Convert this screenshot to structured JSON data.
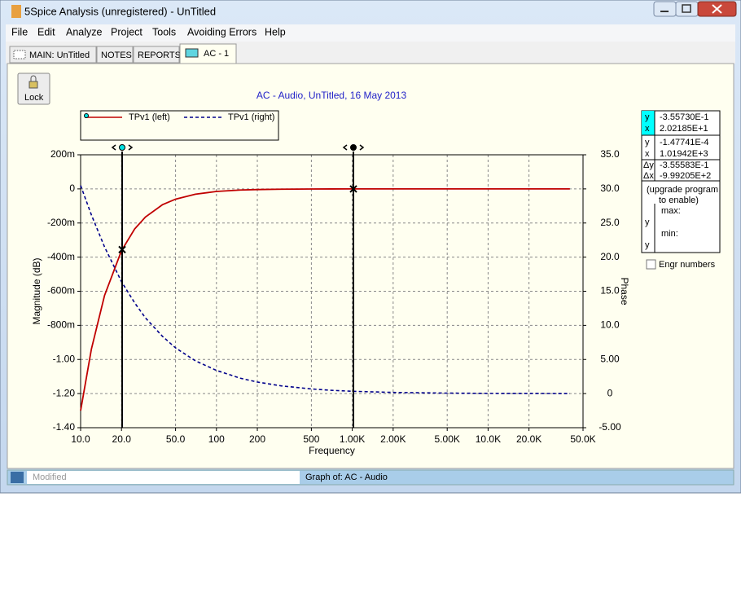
{
  "window": {
    "title": "5Spice Analysis (unregistered) - UnTitled"
  },
  "menu": [
    "File",
    "Edit",
    "Analyze",
    "Project",
    "Tools",
    "Avoiding Errors",
    "Help"
  ],
  "tabs": [
    "MAIN:  UnTitled",
    "NOTES",
    "REPORTS",
    "AC - 1"
  ],
  "lock": "Lock",
  "chart_data": {
    "type": "line",
    "title": "AC - Audio,    UnTitled,   16 May 2013",
    "xlabel": "Frequency",
    "ylabel": "Magnitude (dB)",
    "y2label": "Phase",
    "xscale": "log",
    "grid": true,
    "xlim": [
      10,
      50000
    ],
    "xticks": [
      {
        "value": 10,
        "label": "10.0"
      },
      {
        "value": 20,
        "label": "20.0"
      },
      {
        "value": 50,
        "label": "50.0"
      },
      100,
      200,
      500,
      {
        "value": 1000,
        "label": "1.00K"
      },
      {
        "value": 2000,
        "label": "2.00K"
      },
      {
        "value": 5000,
        "label": "5.00K"
      },
      {
        "value": 10000,
        "label": "10.0K"
      },
      {
        "value": 20000,
        "label": "20.0K"
      },
      {
        "value": 50000,
        "label": "50.0K"
      }
    ],
    "ylim": [
      -1.4,
      0.2
    ],
    "yticks": [
      {
        "value": 0.2,
        "label": "200m"
      },
      0,
      {
        "value": -0.2,
        "label": "-200m"
      },
      {
        "value": -0.4,
        "label": "-400m"
      },
      {
        "value": -0.6,
        "label": "-600m"
      },
      {
        "value": -0.8,
        "label": "-800m"
      },
      {
        "value": -1.0,
        "label": "-1.00"
      },
      {
        "value": -1.2,
        "label": "-1.20"
      },
      {
        "value": -1.4,
        "label": "-1.40"
      }
    ],
    "y2lim": [
      -5,
      35
    ],
    "y2ticks": [
      {
        "value": 35,
        "label": "35.0"
      },
      {
        "value": 30,
        "label": "30.0"
      },
      {
        "value": 25,
        "label": "25.0"
      },
      {
        "value": 20,
        "label": "20.0"
      },
      {
        "value": 15,
        "label": "15.0"
      },
      {
        "value": 10,
        "label": "10.0"
      },
      {
        "value": 5,
        "label": "5.00"
      },
      0,
      {
        "value": -5,
        "label": "-5.00"
      }
    ],
    "x": [
      10,
      12,
      15,
      20,
      25,
      30,
      40,
      50,
      70,
      100,
      150,
      200,
      300,
      500,
      700,
      1000,
      2000,
      5000,
      10000,
      20000,
      40000
    ],
    "series": [
      {
        "name": "TPv1 (left)",
        "color": "#c00000",
        "style": "solid",
        "values": [
          -1.3,
          -0.94,
          -0.625,
          -0.362,
          -0.235,
          -0.165,
          -0.093,
          -0.06,
          -0.031,
          -0.015,
          -0.0067,
          -0.0038,
          -0.0017,
          -0.0006,
          -0.0003,
          -0.00015,
          -4e-05,
          0,
          0,
          0,
          0
        ]
      },
      {
        "name": "TPv1 (right)",
        "color": "#00008b",
        "style": "dashed",
        "axis": "y2",
        "values": [
          30.5,
          26.2,
          21.5,
          16.4,
          13.3,
          11.1,
          8.4,
          6.7,
          4.8,
          3.4,
          2.25,
          1.69,
          1.13,
          0.68,
          0.48,
          0.34,
          0.17,
          0.07,
          0.03,
          0.02,
          0.01
        ]
      }
    ],
    "cursors": [
      20.2185,
      1019.42
    ]
  },
  "cursor_panel": {
    "groups": [
      [
        [
          "y",
          "-3.55730E-1"
        ],
        [
          "x",
          "2.02185E+1"
        ]
      ],
      [
        [
          "y",
          "-1.47741E-4"
        ],
        [
          "x",
          "1.01942E+3"
        ]
      ],
      [
        [
          "Δy",
          "-3.55583E-1"
        ],
        [
          "Δx",
          "-9.99205E+2"
        ]
      ]
    ],
    "note": [
      "(upgrade program",
      "to enable)"
    ],
    "minmax": [
      "max:",
      "y",
      "min:",
      "y"
    ]
  },
  "checkbox": "Engr numbers",
  "status": {
    "left": "Modified",
    "right": "Graph of:  AC - Audio"
  }
}
